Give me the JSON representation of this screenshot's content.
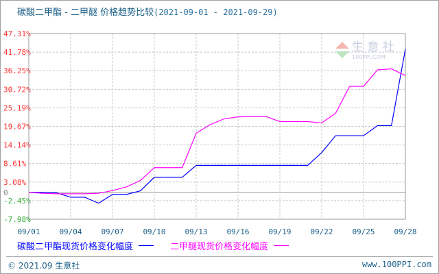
{
  "chart_data": {
    "type": "line",
    "title": "碳酸二甲酯 - 二甲醚 价格趋势比较",
    "subtitle": "(2021-09-01 - 2021-09-29)",
    "x": [
      "09/01",
      "09/02",
      "09/03",
      "09/04",
      "09/05",
      "09/06",
      "09/07",
      "09/08",
      "09/09",
      "09/10",
      "09/11",
      "09/12",
      "09/13",
      "09/14",
      "09/15",
      "09/16",
      "09/17",
      "09/18",
      "09/19",
      "09/20",
      "09/21",
      "09/22",
      "09/23",
      "09/24",
      "09/25",
      "09/26",
      "09/27",
      "09/28"
    ],
    "x_tick_labels": [
      "09/01",
      "09/04",
      "09/07",
      "09/10",
      "09/13",
      "09/16",
      "09/19",
      "09/22",
      "09/25",
      "09/28"
    ],
    "y_tick_labels": [
      "47.31%",
      "41.78%",
      "36.25%",
      "30.72%",
      "25.19%",
      "19.67%",
      "14.14%",
      "8.61%",
      "3.08%",
      "0",
      "-2.45%",
      "-7.98%"
    ],
    "y_ticks": [
      47.31,
      41.78,
      36.25,
      30.72,
      25.19,
      19.67,
      14.14,
      8.61,
      3.08,
      0,
      -2.45,
      -7.98
    ],
    "ylim": [
      -7.98,
      47.31
    ],
    "grid": true,
    "legend_placement": "bottom",
    "series": [
      {
        "name": "碳酸二甲酯现货价格变化幅度",
        "color": "#0000ff",
        "values": [
          0,
          0,
          -0.14,
          -1.43,
          -1.43,
          -3.21,
          -0.61,
          -0.61,
          0.48,
          4.51,
          4.51,
          4.51,
          8.06,
          8.06,
          8.06,
          8.06,
          8.06,
          8.06,
          8.06,
          8.06,
          8.06,
          11.88,
          16.9,
          16.9,
          16.9,
          19.9,
          19.9,
          42.7
        ]
      },
      {
        "name": "二甲醚现货价格变化幅度",
        "color": "#ff00ff",
        "values": [
          0,
          -0.27,
          -0.41,
          -0.41,
          -0.41,
          -0.27,
          0.55,
          1.64,
          3.55,
          7.38,
          7.38,
          7.38,
          17.62,
          20.2,
          21.9,
          22.5,
          22.6,
          22.6,
          21.1,
          21.1,
          21.1,
          20.7,
          23.6,
          31.6,
          31.6,
          36.5,
          36.8,
          34.8
        ]
      }
    ]
  },
  "footer": {
    "copyright": "© 2021.09 生意社",
    "site": "www.100PPI.com"
  },
  "watermark": {
    "text": "生 意 社",
    "sub": "100PPI.COM"
  },
  "colors": {
    "positive_tick": "#ff3333",
    "negative_tick": "#33aa33",
    "zero_tick": "#888888",
    "title": "#1a5f86"
  }
}
